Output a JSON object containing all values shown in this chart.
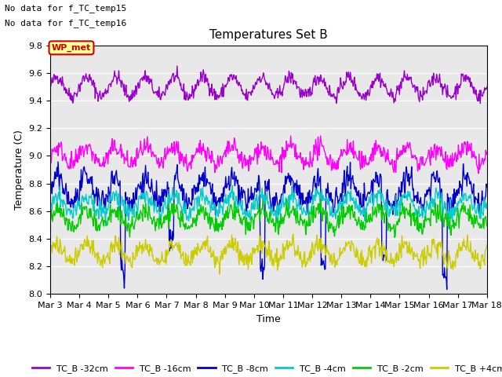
{
  "title": "Temperatures Set B",
  "xlabel": "Time",
  "ylabel": "Temperature (C)",
  "ylim": [
    8.0,
    9.8
  ],
  "yticks": [
    8.0,
    8.2,
    8.4,
    8.6,
    8.8,
    9.0,
    9.2,
    9.4,
    9.6,
    9.8
  ],
  "bg_color": "#e8e8e8",
  "text_no_data": [
    "No data for f_TC_temp15",
    "No data for f_TC_temp16"
  ],
  "wp_met_label": "WP_met",
  "wp_met_color": "#cc0000",
  "wp_met_bg": "#ffff99",
  "series": [
    {
      "label": "TC_B -32cm",
      "color": "#9900cc",
      "mean": 9.5,
      "amp": 0.07,
      "noise": 0.025
    },
    {
      "label": "TC_B -16cm",
      "color": "#ff00ff",
      "mean": 9.0,
      "amp": 0.06,
      "noise": 0.035
    },
    {
      "label": "TC_B -8cm",
      "color": "#0000cc",
      "mean": 8.75,
      "amp": 0.09,
      "noise": 0.045
    },
    {
      "label": "TC_B -4cm",
      "color": "#00cccc",
      "mean": 8.65,
      "amp": 0.06,
      "noise": 0.035
    },
    {
      "label": "TC_B -2cm",
      "color": "#00cc00",
      "mean": 8.55,
      "amp": 0.06,
      "noise": 0.035
    },
    {
      "label": "TC_B +4cm",
      "color": "#cccc00",
      "mean": 8.3,
      "amp": 0.06,
      "noise": 0.035
    }
  ],
  "n_days": 15,
  "points_per_day": 48,
  "start_day": 3,
  "xtick_days": [
    3,
    4,
    5,
    6,
    7,
    8,
    9,
    10,
    11,
    12,
    13,
    14,
    15,
    16,
    17,
    18
  ],
  "xtick_labels": [
    "Mar 3",
    "Mar 4",
    "Mar 5",
    "Mar 6",
    "Mar 7",
    "Mar 8",
    "Mar 9",
    "Mar 10",
    "Mar 11",
    "Mar 12",
    "Mar 13",
    "Mar 14",
    "Mar 15",
    "Mar 16",
    "Mar 17",
    "Mar 18"
  ],
  "legend_ncol": 6,
  "line_width": 1.0,
  "title_fontsize": 11,
  "axis_fontsize": 9,
  "tick_fontsize": 8
}
